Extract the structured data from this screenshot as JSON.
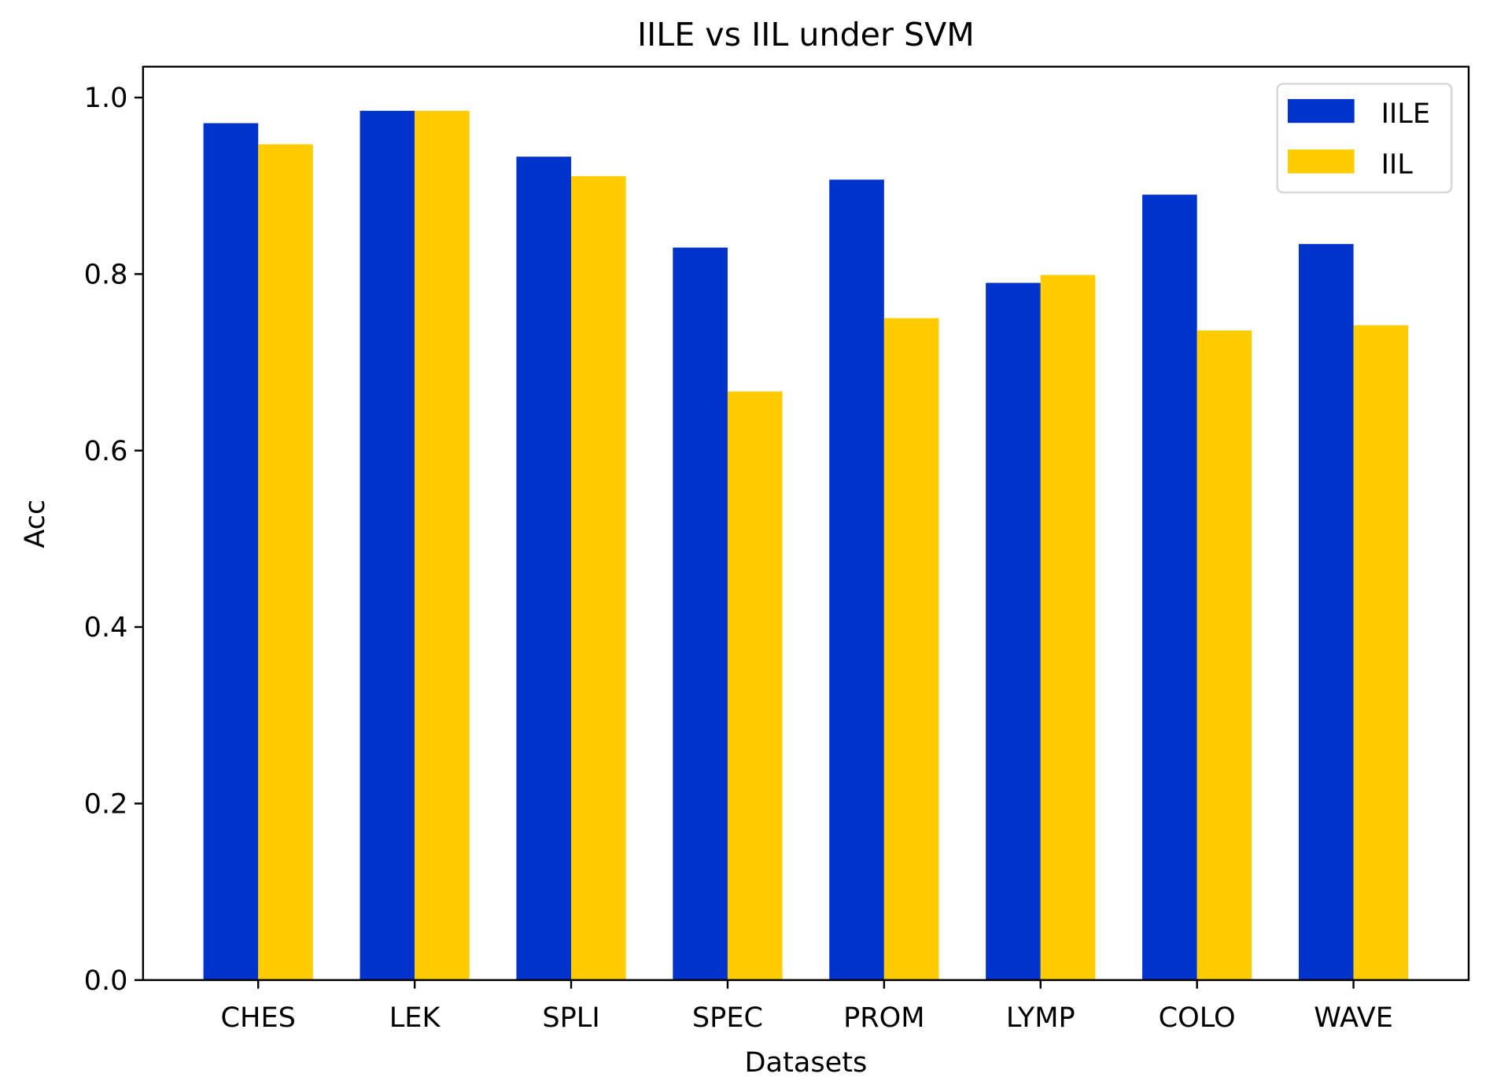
{
  "chart_data": {
    "type": "bar",
    "title": "IILE vs IIL under SVM",
    "xlabel": "Datasets",
    "ylabel": "Acc",
    "categories": [
      "CHES",
      "LEK",
      "SPLI",
      "SPEC",
      "PROM",
      "LYMP",
      "COLO",
      "WAVE"
    ],
    "series": [
      {
        "name": "IILE",
        "color": "#0033cc",
        "values": [
          0.971,
          0.985,
          0.933,
          0.83,
          0.907,
          0.79,
          0.89,
          0.834
        ]
      },
      {
        "name": "IIL",
        "color": "#ffcc00",
        "values": [
          0.947,
          0.985,
          0.911,
          0.667,
          0.75,
          0.799,
          0.736,
          0.742
        ]
      }
    ],
    "ylim": [
      0,
      1.035
    ],
    "yticks": [
      "0.0",
      "0.2",
      "0.4",
      "0.6",
      "0.8",
      "1.0"
    ],
    "grid": false,
    "legend": "top-right"
  }
}
